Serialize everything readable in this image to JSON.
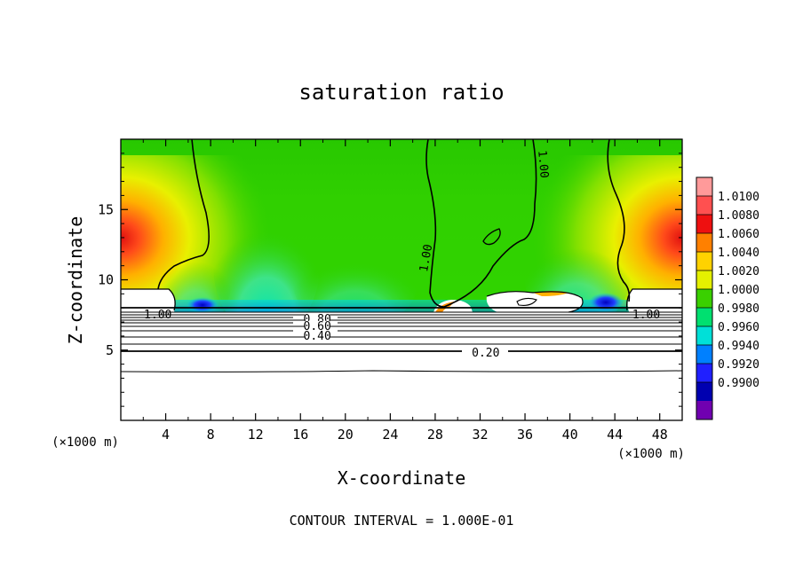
{
  "chart_data": {
    "type": "heatmap",
    "title": "saturation ratio",
    "xlabel": "X-coordinate",
    "ylabel": "Z-coordinate",
    "x_unit_left": "(×1000 m)",
    "x_unit_right": "(×1000 m)",
    "xlim": [
      0,
      50
    ],
    "ylim": [
      0,
      20
    ],
    "xticks": [
      "4",
      "8",
      "12",
      "16",
      "20",
      "24",
      "28",
      "32",
      "36",
      "40",
      "44",
      "48"
    ],
    "xtick_values": [
      4,
      8,
      12,
      16,
      20,
      24,
      28,
      32,
      36,
      40,
      44,
      48
    ],
    "yticks": [
      "5",
      "10",
      "15"
    ],
    "ytick_values": [
      5,
      10,
      15
    ],
    "footer": "CONTOUR INTERVAL = 1.000E-01",
    "colorbar": {
      "levels": [
        "1.0100",
        "1.0080",
        "1.0060",
        "1.0040",
        "1.0020",
        "1.0000",
        "0.9980",
        "0.9960",
        "0.9940",
        "0.9920",
        "0.9900"
      ],
      "colors": [
        "#ff9a9a",
        "#ff5050",
        "#ee1010",
        "#ff8000",
        "#ffd200",
        "#e4f000",
        "#3ad000",
        "#00e070",
        "#00e0d8",
        "#0080ff",
        "#2020ff",
        "#0000b0",
        "#7000b0"
      ]
    },
    "contour_labels": [
      {
        "text": "1.00",
        "x": 3.3,
        "y": 7.5
      },
      {
        "text": "0.80",
        "x": 17.5,
        "y": 7.2
      },
      {
        "text": "0.60",
        "x": 17.5,
        "y": 6.7
      },
      {
        "text": "0.40",
        "x": 17.5,
        "y": 6.0
      },
      {
        "text": "0.20",
        "x": 32.5,
        "y": 4.8
      },
      {
        "text": "1.00",
        "x": 27.5,
        "y": 11.5
      },
      {
        "text": "1.00",
        "x": 37.3,
        "y": 18.2
      },
      {
        "text": "1.00",
        "x": 46.8,
        "y": 7.5
      }
    ]
  }
}
